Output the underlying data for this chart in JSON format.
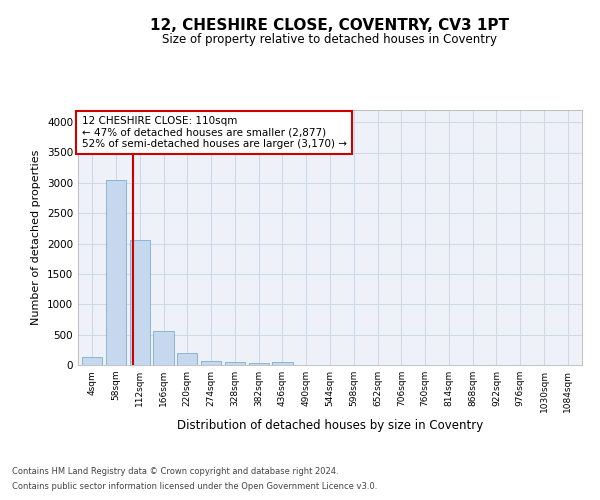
{
  "title": "12, CHESHIRE CLOSE, COVENTRY, CV3 1PT",
  "subtitle": "Size of property relative to detached houses in Coventry",
  "xlabel": "Distribution of detached houses by size in Coventry",
  "ylabel": "Number of detached properties",
  "footer1": "Contains HM Land Registry data © Crown copyright and database right 2024.",
  "footer2": "Contains public sector information licensed under the Open Government Licence v3.0.",
  "bar_labels": [
    "4sqm",
    "58sqm",
    "112sqm",
    "166sqm",
    "220sqm",
    "274sqm",
    "328sqm",
    "382sqm",
    "436sqm",
    "490sqm",
    "544sqm",
    "598sqm",
    "652sqm",
    "706sqm",
    "760sqm",
    "814sqm",
    "868sqm",
    "922sqm",
    "976sqm",
    "1030sqm",
    "1084sqm"
  ],
  "bar_values": [
    140,
    3050,
    2060,
    555,
    200,
    70,
    50,
    40,
    50,
    0,
    0,
    0,
    0,
    0,
    0,
    0,
    0,
    0,
    0,
    0,
    0
  ],
  "bar_color": "#c5d8ed",
  "bar_edge_color": "#7bafd4",
  "grid_color": "#d0d8e8",
  "background_color": "#eef2f8",
  "annotation_text": "12 CHESHIRE CLOSE: 110sqm\n← 47% of detached houses are smaller (2,877)\n52% of semi-detached houses are larger (3,170) →",
  "annotation_box_color": "#ffffff",
  "annotation_box_edge": "#cc0000",
  "vline_color": "#cc0000",
  "ylim": [
    0,
    4200
  ],
  "yticks": [
    0,
    500,
    1000,
    1500,
    2000,
    2500,
    3000,
    3500,
    4000
  ]
}
